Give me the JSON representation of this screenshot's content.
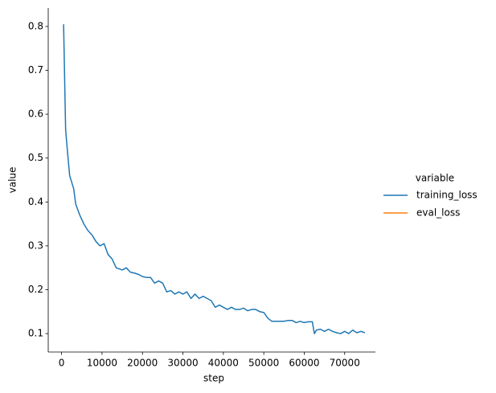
{
  "chart_data": {
    "type": "line",
    "xlabel": "step",
    "ylabel": "value",
    "legend_title": "variable",
    "legend": "right",
    "x": [
      500,
      1000,
      1500,
      2000,
      3000,
      3500,
      4500,
      5500,
      6500,
      7500,
      8500,
      9500,
      10500,
      11500,
      12500,
      13500,
      15000,
      16000,
      17000,
      18000,
      19000,
      20000,
      21000,
      22000,
      23000,
      24000,
      25000,
      26000,
      27000,
      28000,
      29000,
      30000,
      31000,
      32000,
      33000,
      34000,
      35000,
      36000,
      37000,
      38000,
      39000,
      40000,
      41000,
      42000,
      43000,
      44000,
      45000,
      46000,
      47000,
      48000,
      49000,
      50000,
      51000,
      52000,
      53000,
      54000,
      55000,
      56000,
      57000,
      58000,
      59000,
      60000,
      61000,
      62000,
      62500,
      63000,
      64000,
      65000,
      66000,
      67000,
      68000,
      69000,
      70000,
      71000,
      72000,
      73000,
      74000,
      75000
    ],
    "series": [
      {
        "name": "training_loss",
        "color": "#1f77b4",
        "values": [
          0.805,
          0.565,
          0.51,
          0.46,
          0.43,
          0.395,
          0.37,
          0.35,
          0.335,
          0.325,
          0.31,
          0.3,
          0.305,
          0.28,
          0.27,
          0.25,
          0.245,
          0.25,
          0.24,
          0.238,
          0.235,
          0.23,
          0.228,
          0.228,
          0.215,
          0.22,
          0.215,
          0.195,
          0.198,
          0.19,
          0.195,
          0.19,
          0.195,
          0.18,
          0.19,
          0.18,
          0.185,
          0.18,
          0.175,
          0.16,
          0.165,
          0.16,
          0.155,
          0.16,
          0.155,
          0.155,
          0.158,
          0.152,
          0.155,
          0.155,
          0.15,
          0.148,
          0.135,
          0.128,
          0.128,
          0.128,
          0.128,
          0.13,
          0.13,
          0.125,
          0.128,
          0.125,
          0.127,
          0.127,
          0.1,
          0.108,
          0.11,
          0.105,
          0.11,
          0.105,
          0.102,
          0.1,
          0.105,
          0.1,
          0.108,
          0.102,
          0.105,
          0.102
        ]
      },
      {
        "name": "eval_loss",
        "color": "#ff7f0e",
        "values": [
          null,
          null,
          null,
          null,
          null,
          null,
          null,
          null,
          null,
          null,
          null,
          null,
          null,
          null,
          null,
          null,
          null,
          null,
          null,
          null,
          null,
          null,
          null,
          null,
          null,
          null,
          null,
          null,
          null,
          null,
          null,
          null,
          null,
          null,
          null,
          null,
          null,
          null,
          null,
          null,
          null,
          null,
          null,
          null,
          null,
          null,
          null,
          null,
          null,
          null,
          null,
          null,
          null,
          null,
          null,
          null,
          null,
          null,
          null,
          null,
          null,
          null,
          null,
          null,
          null,
          null,
          null,
          null,
          null,
          null,
          null,
          null,
          null,
          null,
          null,
          null,
          null,
          null
        ]
      }
    ],
    "xlim": [
      -3300,
      77600
    ],
    "xticks": [
      0,
      10000,
      20000,
      30000,
      40000,
      50000,
      60000,
      70000
    ],
    "ylim": [
      0.058,
      0.842
    ],
    "yticks": [
      0.1,
      0.2,
      0.3,
      0.4,
      0.5,
      0.6,
      0.7,
      0.8
    ]
  }
}
